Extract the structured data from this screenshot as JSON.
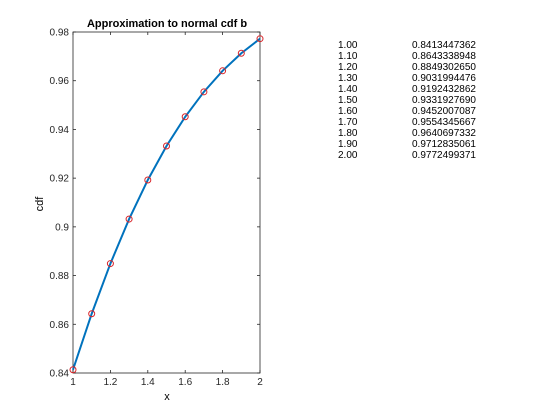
{
  "chart_data": {
    "type": "line",
    "title": "Approximation to normal cdf b",
    "xlabel": "x",
    "ylabel": "cdf",
    "xlim": [
      1,
      2
    ],
    "ylim": [
      0.84,
      0.98
    ],
    "xticks": [
      1,
      1.2,
      1.4,
      1.6,
      1.8,
      2
    ],
    "xtick_labels": [
      "1",
      "1.2",
      "1.4",
      "1.6",
      "1.8",
      "2"
    ],
    "yticks": [
      0.84,
      0.86,
      0.88,
      0.9,
      0.92,
      0.94,
      0.96,
      0.98
    ],
    "ytick_labels": [
      "0.84",
      "0.86",
      "0.88",
      "0.9",
      "0.92",
      "0.94",
      "0.96",
      "0.98"
    ],
    "grid": false,
    "series": [
      {
        "style": "line",
        "color": "#0072bd",
        "x": [
          1.0,
          1.1,
          1.2,
          1.3,
          1.4,
          1.5,
          1.6,
          1.7,
          1.8,
          1.9,
          2.0
        ],
        "y": [
          0.8413447362,
          0.8643338948,
          0.884930265,
          0.9031994476,
          0.9192432862,
          0.933192769,
          0.9452007087,
          0.9554345667,
          0.9640697332,
          0.9712835061,
          0.9772499371
        ]
      },
      {
        "style": "markers",
        "marker": "circle",
        "color": "#d9252a",
        "x": [
          1.0,
          1.1,
          1.2,
          1.3,
          1.4,
          1.5,
          1.6,
          1.7,
          1.8,
          1.9,
          2.0
        ],
        "y": [
          0.8413447362,
          0.8643338948,
          0.884930265,
          0.9031994476,
          0.9192432862,
          0.933192769,
          0.9452007087,
          0.9554345667,
          0.9640697332,
          0.9712835061,
          0.9772499371
        ]
      }
    ]
  },
  "table": {
    "rows": [
      {
        "x": "1.00",
        "value": "0.8413447362"
      },
      {
        "x": "1.10",
        "value": "0.8643338948"
      },
      {
        "x": "1.20",
        "value": "0.8849302650"
      },
      {
        "x": "1.30",
        "value": "0.9031994476"
      },
      {
        "x": "1.40",
        "value": "0.9192432862"
      },
      {
        "x": "1.50",
        "value": "0.9331927690"
      },
      {
        "x": "1.60",
        "value": "0.9452007087"
      },
      {
        "x": "1.70",
        "value": "0.9554345667"
      },
      {
        "x": "1.80",
        "value": "0.9640697332"
      },
      {
        "x": "1.90",
        "value": "0.9712835061"
      },
      {
        "x": "2.00",
        "value": "0.9772499371"
      }
    ]
  }
}
